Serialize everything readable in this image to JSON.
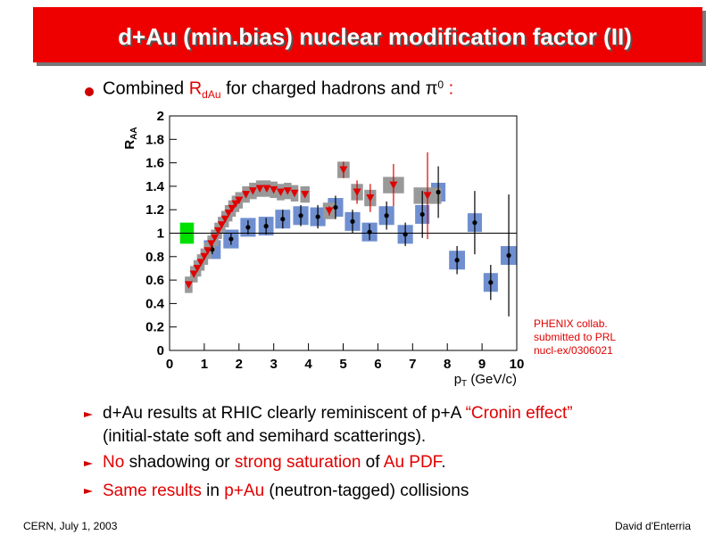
{
  "title": "d+Au (min.bias) nuclear modification factor (II)",
  "bullets": [
    [
      {
        "text": "Combined "
      },
      {
        "text": "R",
        "red": true
      },
      {
        "text": "dAu",
        "red": true,
        "sub": true
      },
      {
        "text": " for charged hadrons and "
      },
      {
        "text": "π"
      },
      {
        "text": "0",
        "sup": true
      },
      {
        "text": " :",
        "red": true
      }
    ],
    [
      {
        "text": "d+Au results at RHIC clearly reminiscent of p+A "
      },
      {
        "text": "“Cronin effect”",
        "red": true
      }
    ],
    [
      {
        "text": "(initial-state soft and semihard scatterings)."
      }
    ],
    [
      {
        "text": " No",
        "red": true
      },
      {
        "text": " shadowing or "
      },
      {
        "text": "strong saturation",
        "red": true
      },
      {
        "text": " of "
      },
      {
        "text": "Au PDF",
        "red": true
      },
      {
        "text": "."
      }
    ],
    [
      {
        "text": " Same results",
        "red": true
      },
      {
        "text": " in "
      },
      {
        "text": "p+Au",
        "red": true
      },
      {
        "text": " (neutron-tagged) collisions"
      }
    ]
  ],
  "footer_left": "CERN, July 1, 2003",
  "footer_right": "David d'Enterria",
  "chart_data": {
    "type": "scatter",
    "x_label": {
      "main": "p",
      "sub": "T",
      "unit": " (GeV/c)"
    },
    "y_label": {
      "main": "R",
      "sub": "AA"
    },
    "annotation": [
      "PHENIX collab.",
      "submitted to PRL",
      "nucl-ex/0306021"
    ],
    "xlim": [
      0,
      10
    ],
    "ylim": [
      0,
      2
    ],
    "xticks": [
      0,
      1,
      2,
      3,
      4,
      5,
      6,
      7,
      8,
      9,
      10
    ],
    "yticks": [
      0,
      0.2,
      0.4,
      0.6,
      0.8,
      1,
      1.2,
      1.4,
      1.6,
      1.8,
      2
    ],
    "reference_line": 1,
    "norm_error": 0.09,
    "norm_color": "#00e000",
    "series": [
      {
        "marker": "circle",
        "color": "#000000",
        "box_color": "#6f8fd0",
        "x": [
          1.23,
          1.77,
          2.26,
          2.78,
          3.26,
          3.78,
          4.27,
          4.78,
          5.27,
          5.76,
          6.25,
          6.79,
          7.28,
          7.74,
          8.28,
          8.79,
          9.25,
          9.77
        ],
        "values": [
          0.86,
          0.95,
          1.05,
          1.06,
          1.12,
          1.15,
          1.14,
          1.22,
          1.1,
          1.01,
          1.15,
          0.99,
          1.16,
          1.35,
          0.77,
          1.09,
          0.58,
          0.81
        ],
        "errors": [
          0.04,
          0.05,
          0.06,
          0.07,
          0.08,
          0.09,
          0.1,
          0.1,
          0.1,
          0.07,
          0.12,
          0.1,
          0.2,
          0.22,
          0.12,
          0.27,
          0.15,
          0.52
        ],
        "sys_error": 0.08
      },
      {
        "marker": "triangle-down",
        "color": "#e00000",
        "box_color": "#999999",
        "x": [
          0.55,
          0.7,
          0.8,
          0.9,
          1.0,
          1.1,
          1.2,
          1.3,
          1.4,
          1.5,
          1.6,
          1.7,
          1.8,
          1.9,
          2.0,
          2.2,
          2.4,
          2.6,
          2.8,
          3.0,
          3.2,
          3.4,
          3.6,
          3.9,
          4.6,
          5.01,
          5.4,
          5.78,
          6.45,
          7.43
        ],
        "values": [
          0.56,
          0.65,
          0.7,
          0.75,
          0.8,
          0.85,
          0.91,
          0.96,
          1.02,
          1.07,
          1.12,
          1.17,
          1.21,
          1.25,
          1.28,
          1.33,
          1.36,
          1.38,
          1.38,
          1.37,
          1.35,
          1.36,
          1.34,
          1.33,
          1.19,
          1.54,
          1.35,
          1.3,
          1.41,
          1.32
        ],
        "errors": [
          0.02,
          0.02,
          0.02,
          0.02,
          0.02,
          0.02,
          0.02,
          0.02,
          0.02,
          0.02,
          0.02,
          0.02,
          0.02,
          0.02,
          0.02,
          0.02,
          0.02,
          0.02,
          0.02,
          0.02,
          0.02,
          0.02,
          0.02,
          0.02,
          0.04,
          0.07,
          0.1,
          0.12,
          0.18,
          0.37
        ],
        "sys_error": 0.07
      }
    ]
  }
}
